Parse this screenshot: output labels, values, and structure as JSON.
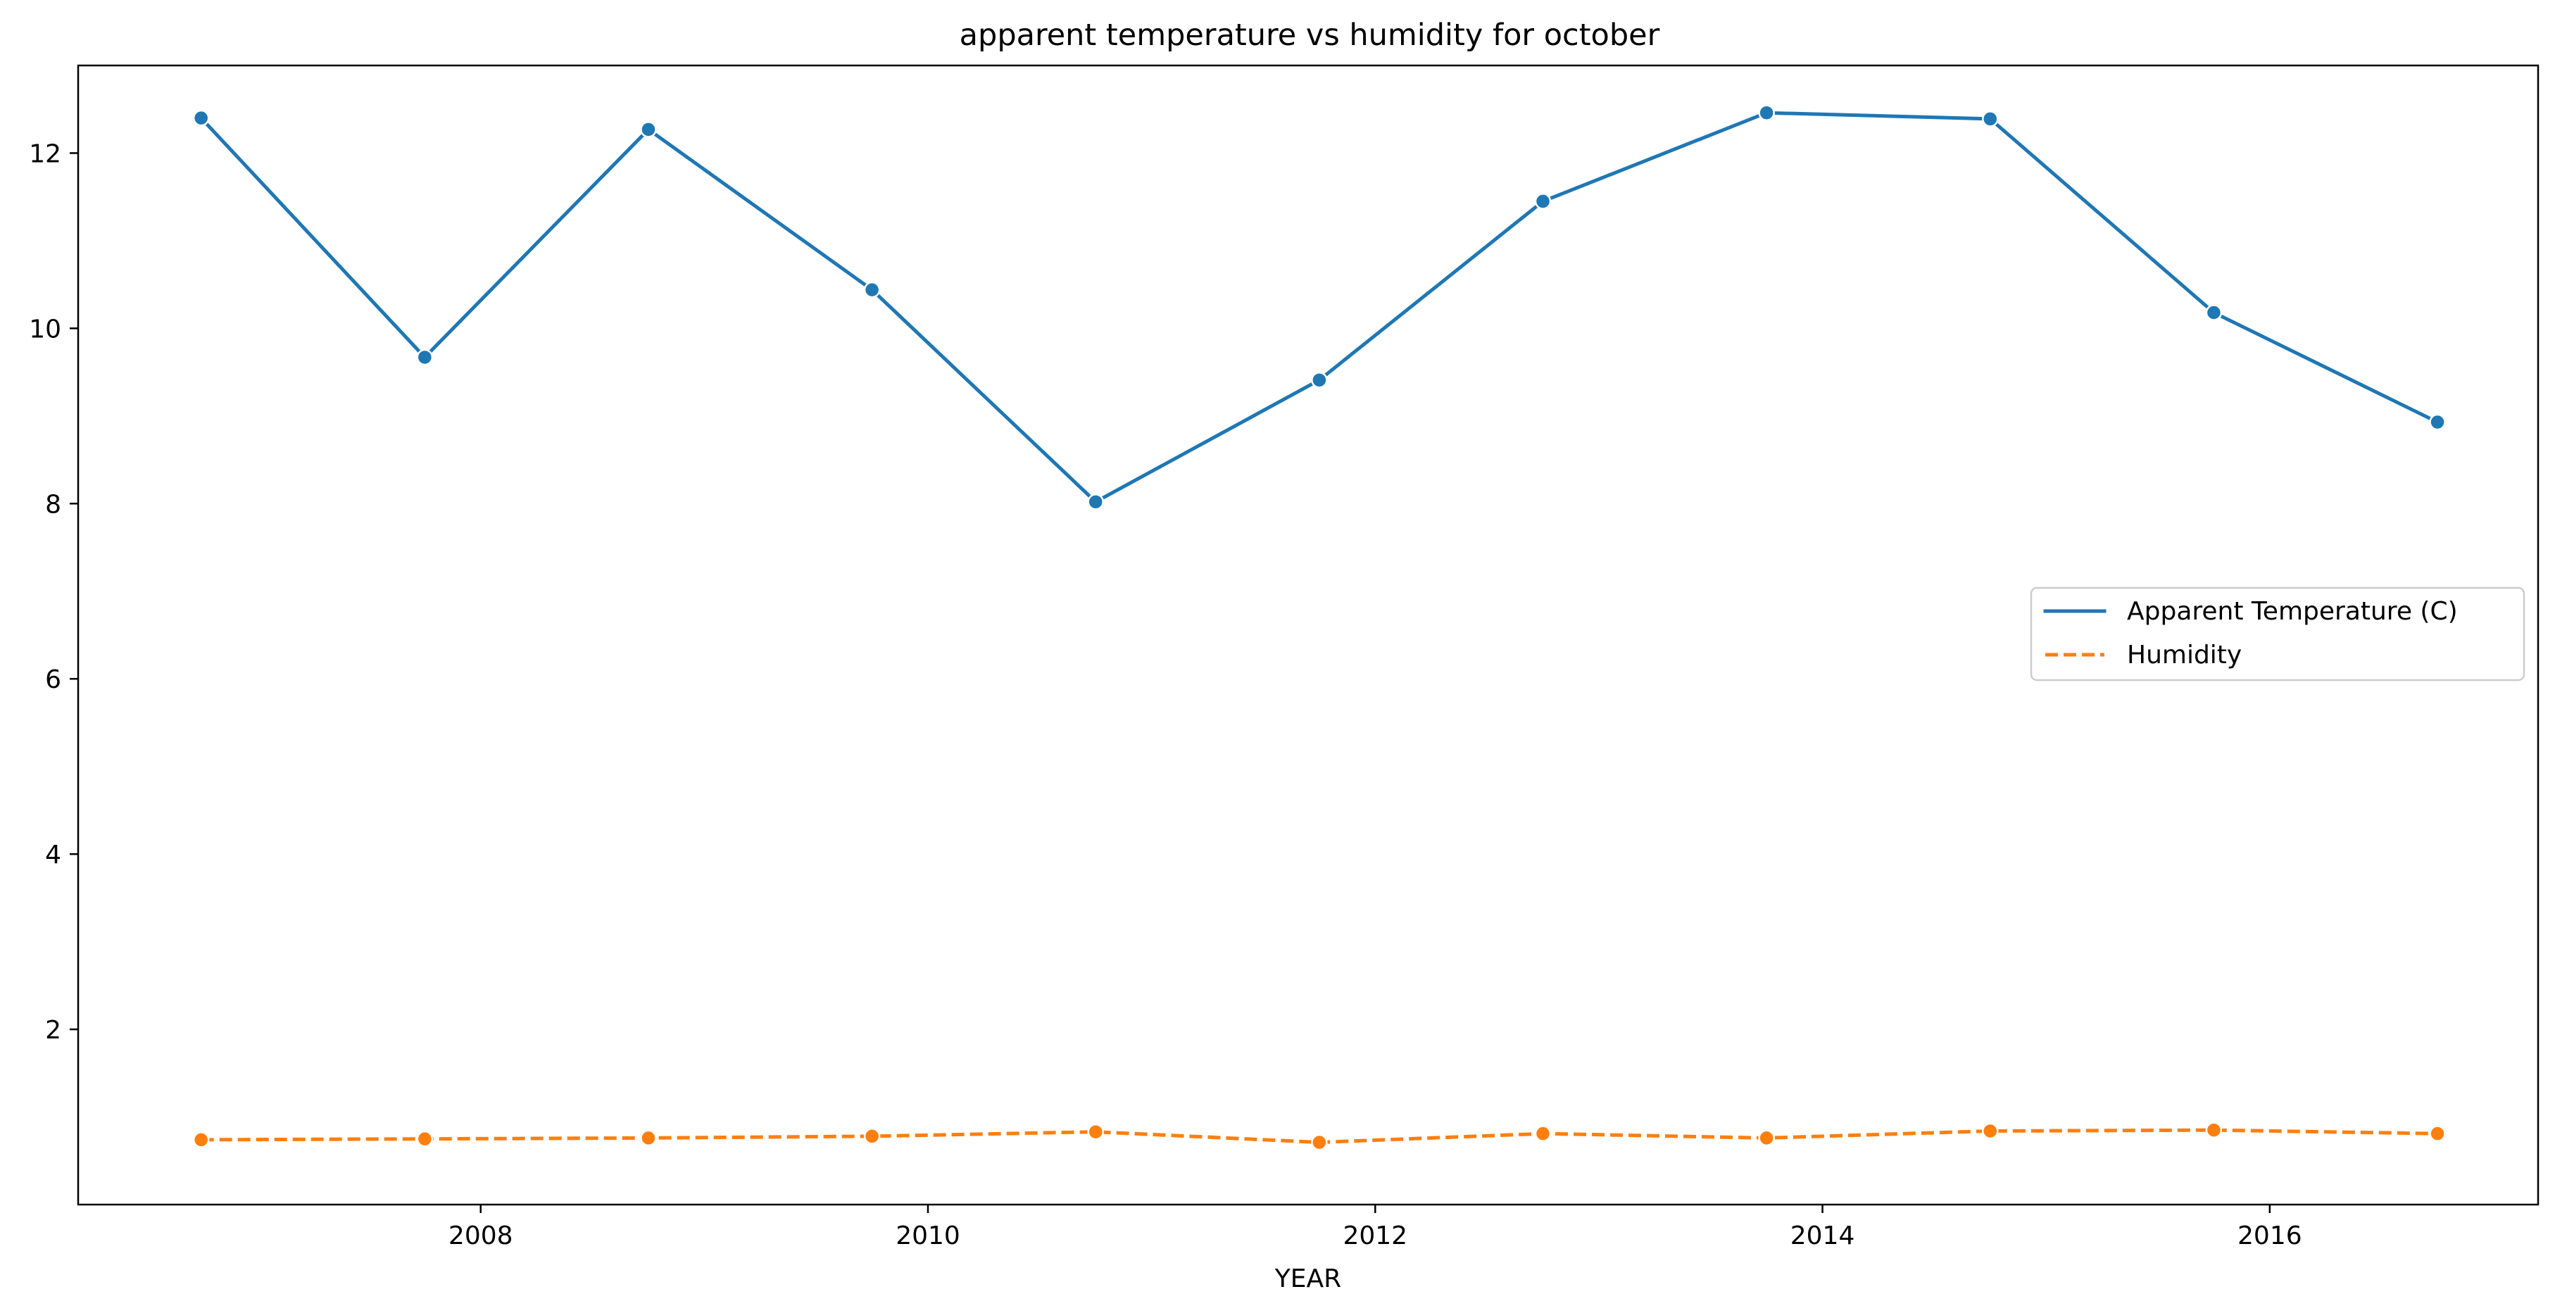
{
  "chart_data": {
    "type": "line",
    "title": "apparent temperature vs humidity for october",
    "xlabel": "YEAR",
    "ylabel": "",
    "x": [
      2006.75,
      2007.75,
      2008.75,
      2009.75,
      2010.75,
      2011.75,
      2012.75,
      2013.75,
      2014.75,
      2015.75,
      2016.75
    ],
    "xlim": [
      2006.2,
      2017.2
    ],
    "ylim": [
      0,
      13
    ],
    "xticks": [
      2008,
      2010,
      2012,
      2014,
      2016
    ],
    "yticks": [
      2,
      4,
      6,
      8,
      10,
      12
    ],
    "grid": false,
    "legend_position": "center-right",
    "series": [
      {
        "name": "Apparent Temperature (C)",
        "color": "#1f77b4",
        "linestyle": "solid",
        "marker": "circle",
        "values": [
          12.4,
          9.67,
          12.27,
          10.44,
          8.02,
          9.41,
          11.45,
          12.46,
          12.39,
          10.18,
          8.93
        ]
      },
      {
        "name": "Humidity",
        "color": "#ff7f0e",
        "linestyle": "dashed",
        "marker": "circle",
        "values": [
          0.74,
          0.75,
          0.76,
          0.78,
          0.83,
          0.71,
          0.81,
          0.76,
          0.84,
          0.85,
          0.81
        ]
      }
    ]
  }
}
